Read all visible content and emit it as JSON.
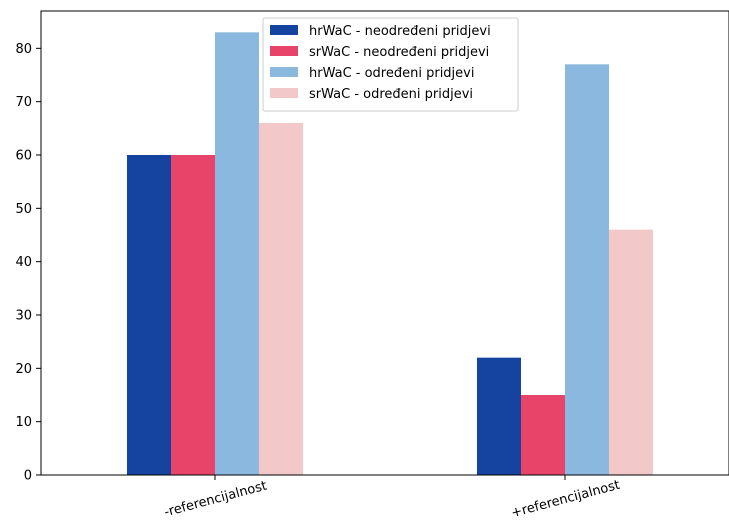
{
  "chart_data": {
    "type": "bar",
    "categories": [
      "-referencijalnost",
      "+referencijalnost"
    ],
    "series": [
      {
        "name": "hrWaC - neodređeni pridjevi",
        "values": [
          60,
          22
        ],
        "color": "#1544a0"
      },
      {
        "name": "srWaC - neodređeni pridjevi",
        "values": [
          60,
          15
        ],
        "color": "#e8446a"
      },
      {
        "name": "hrWaC - određeni pridjevi",
        "values": [
          83,
          77
        ],
        "color": "#8ab8de"
      },
      {
        "name": "srWaC - određeni pridjevi",
        "values": [
          66,
          46
        ],
        "color": "#f2c8c8"
      }
    ],
    "title": "",
    "xlabel": "",
    "ylabel": "",
    "ylim": [
      0,
      87
    ],
    "yticks": [
      0,
      10,
      20,
      30,
      40,
      50,
      60,
      70,
      80
    ],
    "grid": false,
    "legend_position": "top-center"
  }
}
